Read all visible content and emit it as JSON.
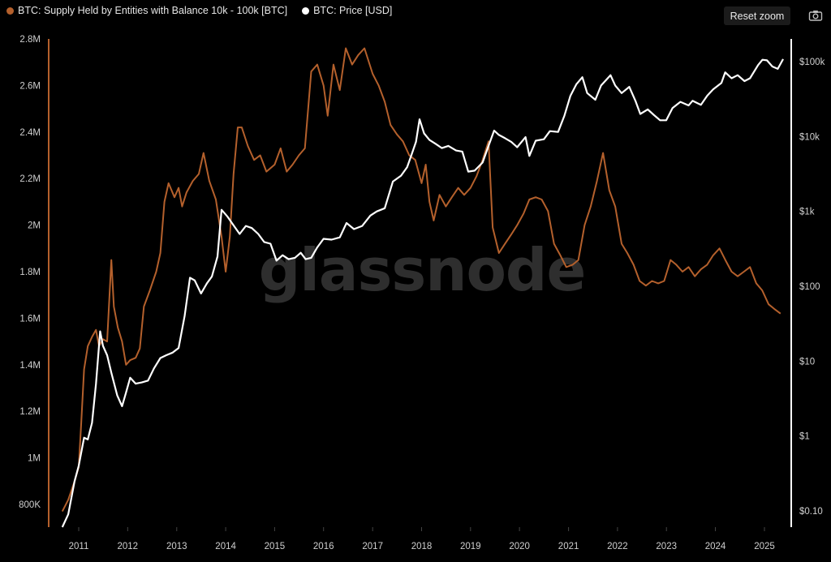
{
  "legend": {
    "series1_label": "BTC: Supply Held by Entities with Balance 10k - 100k [BTC]",
    "series2_label": "BTC: Price [USD]"
  },
  "toolbar": {
    "reset_zoom_label": "Reset zoom",
    "camera_icon": "camera-icon"
  },
  "watermark": "glassnode",
  "colors": {
    "background": "#000000",
    "supply": "#b4602c",
    "price": "#ffffff"
  },
  "chart_data": {
    "type": "line",
    "x_ticks": [
      "2011",
      "2012",
      "2013",
      "2014",
      "2015",
      "2016",
      "2017",
      "2018",
      "2019",
      "2020",
      "2021",
      "2022",
      "2023",
      "2024",
      "2025"
    ],
    "y_left_ticks": [
      "2.8M",
      "2.6M",
      "2.4M",
      "2.2M",
      "2M",
      "1.8M",
      "1.6M",
      "1.4M",
      "1.2M",
      "1M",
      "800K"
    ],
    "y_right_ticks": [
      "$100k",
      "$10k",
      "$1k",
      "$100",
      "$10",
      "$1",
      "$0.10"
    ],
    "y_left_range": [
      750000,
      2800000
    ],
    "y_right_scale": "log",
    "grid": false,
    "legend_position": "top-left",
    "series": [
      {
        "name": "BTC: Supply Held by Entities with Balance 10k - 100k [BTC]",
        "axis": "left",
        "color": "#b4602c",
        "points": [
          [
            "2010-09-01",
            770000
          ],
          [
            "2010-10-15",
            820000
          ],
          [
            "2010-12-01",
            900000
          ],
          [
            "2011-01-01",
            960000
          ],
          [
            "2011-01-20",
            1150000
          ],
          [
            "2011-02-10",
            1380000
          ],
          [
            "2011-03-10",
            1480000
          ],
          [
            "2011-04-10",
            1520000
          ],
          [
            "2011-05-10",
            1550000
          ],
          [
            "2011-06-01",
            1480000
          ],
          [
            "2011-07-01",
            1510000
          ],
          [
            "2011-08-01",
            1500000
          ],
          [
            "2011-09-01",
            1850000
          ],
          [
            "2011-09-20",
            1650000
          ],
          [
            "2011-10-20",
            1560000
          ],
          [
            "2011-11-20",
            1500000
          ],
          [
            "2011-12-20",
            1400000
          ],
          [
            "2012-01-20",
            1420000
          ],
          [
            "2012-03-01",
            1430000
          ],
          [
            "2012-04-01",
            1470000
          ],
          [
            "2012-05-01",
            1650000
          ],
          [
            "2012-06-15",
            1720000
          ],
          [
            "2012-08-01",
            1800000
          ],
          [
            "2012-09-01",
            1880000
          ],
          [
            "2012-10-01",
            2100000
          ],
          [
            "2012-11-01",
            2180000
          ],
          [
            "2012-12-15",
            2120000
          ],
          [
            "2013-01-15",
            2160000
          ],
          [
            "2013-02-10",
            2080000
          ],
          [
            "2013-03-15",
            2140000
          ],
          [
            "2013-05-01",
            2190000
          ],
          [
            "2013-06-15",
            2220000
          ],
          [
            "2013-07-20",
            2310000
          ],
          [
            "2013-09-01",
            2190000
          ],
          [
            "2013-10-20",
            2110000
          ],
          [
            "2013-12-01",
            1950000
          ],
          [
            "2014-01-01",
            1800000
          ],
          [
            "2014-02-01",
            1950000
          ],
          [
            "2014-03-01",
            2220000
          ],
          [
            "2014-04-01",
            2420000
          ],
          [
            "2014-05-01",
            2420000
          ],
          [
            "2014-06-15",
            2340000
          ],
          [
            "2014-08-01",
            2280000
          ],
          [
            "2014-09-15",
            2300000
          ],
          [
            "2014-11-01",
            2230000
          ],
          [
            "2015-01-01",
            2260000
          ],
          [
            "2015-02-15",
            2330000
          ],
          [
            "2015-04-01",
            2230000
          ],
          [
            "2015-05-15",
            2260000
          ],
          [
            "2015-07-01",
            2300000
          ],
          [
            "2015-08-15",
            2330000
          ],
          [
            "2015-10-01",
            2660000
          ],
          [
            "2015-11-15",
            2690000
          ],
          [
            "2016-01-01",
            2600000
          ],
          [
            "2016-02-01",
            2470000
          ],
          [
            "2016-03-15",
            2690000
          ],
          [
            "2016-05-01",
            2580000
          ],
          [
            "2016-06-15",
            2760000
          ],
          [
            "2016-08-01",
            2690000
          ],
          [
            "2016-09-15",
            2730000
          ],
          [
            "2016-11-01",
            2760000
          ],
          [
            "2017-01-01",
            2650000
          ],
          [
            "2017-02-15",
            2600000
          ],
          [
            "2017-04-01",
            2530000
          ],
          [
            "2017-05-15",
            2430000
          ],
          [
            "2017-07-01",
            2390000
          ],
          [
            "2017-08-15",
            2360000
          ],
          [
            "2017-10-01",
            2300000
          ],
          [
            "2017-11-15",
            2280000
          ],
          [
            "2018-01-01",
            2180000
          ],
          [
            "2018-02-01",
            2260000
          ],
          [
            "2018-03-01",
            2100000
          ],
          [
            "2018-04-01",
            2020000
          ],
          [
            "2018-05-15",
            2130000
          ],
          [
            "2018-07-01",
            2080000
          ],
          [
            "2018-08-15",
            2120000
          ],
          [
            "2018-10-01",
            2160000
          ],
          [
            "2018-11-15",
            2130000
          ],
          [
            "2019-01-01",
            2160000
          ],
          [
            "2019-02-15",
            2210000
          ],
          [
            "2019-04-01",
            2280000
          ],
          [
            "2019-05-15",
            2360000
          ],
          [
            "2019-06-15",
            1990000
          ],
          [
            "2019-08-01",
            1880000
          ],
          [
            "2019-09-15",
            1920000
          ],
          [
            "2019-11-01",
            1960000
          ],
          [
            "2019-12-15",
            2000000
          ],
          [
            "2020-02-01",
            2050000
          ],
          [
            "2020-03-15",
            2110000
          ],
          [
            "2020-05-01",
            2120000
          ],
          [
            "2020-06-15",
            2110000
          ],
          [
            "2020-08-01",
            2060000
          ],
          [
            "2020-09-15",
            1920000
          ],
          [
            "2020-11-01",
            1870000
          ],
          [
            "2020-12-15",
            1820000
          ],
          [
            "2021-02-01",
            1830000
          ],
          [
            "2021-03-15",
            1850000
          ],
          [
            "2021-05-01",
            2000000
          ],
          [
            "2021-06-15",
            2080000
          ],
          [
            "2021-08-01",
            2190000
          ],
          [
            "2021-09-15",
            2310000
          ],
          [
            "2021-11-01",
            2150000
          ],
          [
            "2021-12-15",
            2080000
          ],
          [
            "2022-02-01",
            1920000
          ],
          [
            "2022-03-15",
            1880000
          ],
          [
            "2022-05-01",
            1830000
          ],
          [
            "2022-06-15",
            1760000
          ],
          [
            "2022-08-01",
            1740000
          ],
          [
            "2022-09-15",
            1760000
          ],
          [
            "2022-11-01",
            1750000
          ],
          [
            "2022-12-15",
            1760000
          ],
          [
            "2023-02-01",
            1850000
          ],
          [
            "2023-03-15",
            1830000
          ],
          [
            "2023-05-01",
            1800000
          ],
          [
            "2023-06-15",
            1820000
          ],
          [
            "2023-08-01",
            1780000
          ],
          [
            "2023-09-15",
            1810000
          ],
          [
            "2023-11-01",
            1830000
          ],
          [
            "2023-12-15",
            1870000
          ],
          [
            "2024-02-01",
            1900000
          ],
          [
            "2024-03-15",
            1850000
          ],
          [
            "2024-05-01",
            1800000
          ],
          [
            "2024-06-15",
            1780000
          ],
          [
            "2024-08-01",
            1800000
          ],
          [
            "2024-09-15",
            1820000
          ],
          [
            "2024-11-01",
            1750000
          ],
          [
            "2024-12-15",
            1720000
          ],
          [
            "2025-02-01",
            1660000
          ],
          [
            "2025-03-15",
            1640000
          ],
          [
            "2025-05-01",
            1620000
          ]
        ]
      },
      {
        "name": "BTC: Price [USD]",
        "axis": "right",
        "color": "#ffffff",
        "points": [
          [
            "2010-09-01",
            0.06
          ],
          [
            "2010-10-15",
            0.09
          ],
          [
            "2010-12-01",
            0.25
          ],
          [
            "2011-01-01",
            0.4
          ],
          [
            "2011-02-10",
            0.95
          ],
          [
            "2011-03-10",
            0.9
          ],
          [
            "2011-04-10",
            1.5
          ],
          [
            "2011-05-10",
            5
          ],
          [
            "2011-06-10",
            25
          ],
          [
            "2011-07-01",
            16
          ],
          [
            "2011-08-01",
            12
          ],
          [
            "2011-09-01",
            7
          ],
          [
            "2011-10-15",
            3.5
          ],
          [
            "2011-11-20",
            2.5
          ],
          [
            "2011-12-20",
            3.8
          ],
          [
            "2012-01-20",
            6
          ],
          [
            "2012-03-01",
            5
          ],
          [
            "2012-04-15",
            5.2
          ],
          [
            "2012-06-01",
            5.5
          ],
          [
            "2012-07-15",
            8
          ],
          [
            "2012-09-01",
            11
          ],
          [
            "2012-10-15",
            12
          ],
          [
            "2012-12-01",
            13
          ],
          [
            "2013-01-15",
            15
          ],
          [
            "2013-03-01",
            40
          ],
          [
            "2013-04-10",
            130
          ],
          [
            "2013-05-15",
            120
          ],
          [
            "2013-07-01",
            80
          ],
          [
            "2013-08-15",
            110
          ],
          [
            "2013-09-20",
            135
          ],
          [
            "2013-11-01",
            250
          ],
          [
            "2013-12-01",
            1050
          ],
          [
            "2014-01-15",
            850
          ],
          [
            "2014-03-01",
            650
          ],
          [
            "2014-04-15",
            500
          ],
          [
            "2014-06-01",
            640
          ],
          [
            "2014-07-15",
            600
          ],
          [
            "2014-09-01",
            500
          ],
          [
            "2014-10-15",
            390
          ],
          [
            "2014-12-01",
            370
          ],
          [
            "2015-01-15",
            220
          ],
          [
            "2015-03-01",
            260
          ],
          [
            "2015-04-15",
            230
          ],
          [
            "2015-06-01",
            240
          ],
          [
            "2015-07-15",
            280
          ],
          [
            "2015-08-20",
            230
          ],
          [
            "2015-10-01",
            240
          ],
          [
            "2015-11-15",
            330
          ],
          [
            "2016-01-01",
            430
          ],
          [
            "2016-03-01",
            420
          ],
          [
            "2016-05-01",
            450
          ],
          [
            "2016-06-20",
            700
          ],
          [
            "2016-08-15",
            580
          ],
          [
            "2016-10-15",
            640
          ],
          [
            "2016-12-15",
            880
          ],
          [
            "2017-02-01",
            1000
          ],
          [
            "2017-04-01",
            1100
          ],
          [
            "2017-06-01",
            2500
          ],
          [
            "2017-08-01",
            3000
          ],
          [
            "2017-09-15",
            3900
          ],
          [
            "2017-10-15",
            5500
          ],
          [
            "2017-11-20",
            8500
          ],
          [
            "2017-12-17",
            17000
          ],
          [
            "2018-01-20",
            11000
          ],
          [
            "2018-03-01",
            9000
          ],
          [
            "2018-04-15",
            8000
          ],
          [
            "2018-06-01",
            7000
          ],
          [
            "2018-07-20",
            7500
          ],
          [
            "2018-09-15",
            6500
          ],
          [
            "2018-11-01",
            6300
          ],
          [
            "2018-12-15",
            3400
          ],
          [
            "2019-02-01",
            3500
          ],
          [
            "2019-04-01",
            4500
          ],
          [
            "2019-05-15",
            7500
          ],
          [
            "2019-06-26",
            12000
          ],
          [
            "2019-08-01",
            10500
          ],
          [
            "2019-09-15",
            9500
          ],
          [
            "2019-11-01",
            8500
          ],
          [
            "2019-12-15",
            7200
          ],
          [
            "2020-02-15",
            9800
          ],
          [
            "2020-03-15",
            5500
          ],
          [
            "2020-05-01",
            8800
          ],
          [
            "2020-07-01",
            9200
          ],
          [
            "2020-08-15",
            11800
          ],
          [
            "2020-10-15",
            11500
          ],
          [
            "2020-12-01",
            19000
          ],
          [
            "2021-01-15",
            35000
          ],
          [
            "2021-03-01",
            50000
          ],
          [
            "2021-04-14",
            62000
          ],
          [
            "2021-05-20",
            38000
          ],
          [
            "2021-07-20",
            31000
          ],
          [
            "2021-09-01",
            48000
          ],
          [
            "2021-11-10",
            66000
          ],
          [
            "2021-12-15",
            48000
          ],
          [
            "2022-02-01",
            38000
          ],
          [
            "2022-03-30",
            46000
          ],
          [
            "2022-05-15",
            30000
          ],
          [
            "2022-06-20",
            20000
          ],
          [
            "2022-08-15",
            23000
          ],
          [
            "2022-10-01",
            19300
          ],
          [
            "2022-11-15",
            16500
          ],
          [
            "2022-12-31",
            16500
          ],
          [
            "2023-02-15",
            24000
          ],
          [
            "2023-04-15",
            29000
          ],
          [
            "2023-06-15",
            26000
          ],
          [
            "2023-07-15",
            30000
          ],
          [
            "2023-09-15",
            26500
          ],
          [
            "2023-11-01",
            35000
          ],
          [
            "2023-12-15",
            42500
          ],
          [
            "2024-02-15",
            52000
          ],
          [
            "2024-03-14",
            72000
          ],
          [
            "2024-05-01",
            60000
          ],
          [
            "2024-06-15",
            66000
          ],
          [
            "2024-08-05",
            55000
          ],
          [
            "2024-09-15",
            60000
          ],
          [
            "2024-11-15",
            90000
          ],
          [
            "2024-12-17",
            106000
          ],
          [
            "2025-01-20",
            104000
          ],
          [
            "2025-03-01",
            86000
          ],
          [
            "2025-04-10",
            80000
          ],
          [
            "2025-05-20",
            108000
          ]
        ]
      }
    ]
  }
}
